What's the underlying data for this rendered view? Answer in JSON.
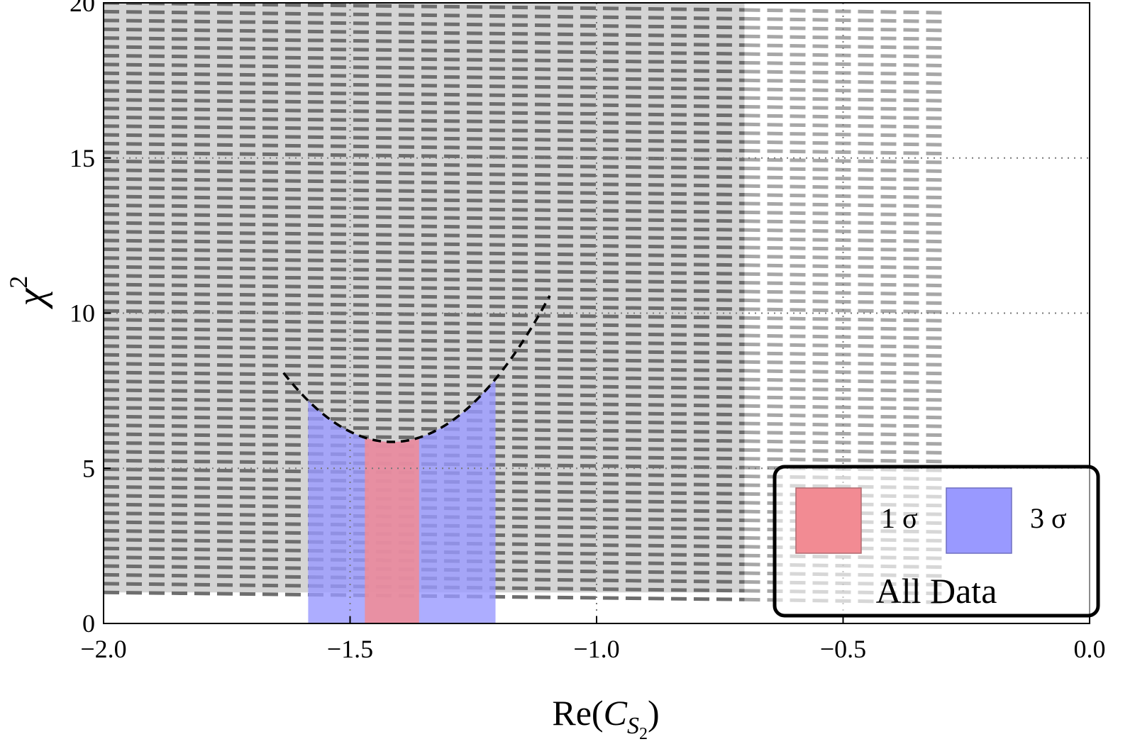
{
  "chart_data": {
    "type": "line",
    "xlabel_main": "Re(",
    "xlabel_var": "C",
    "xlabel_sub": "S",
    "xlabel_subsub": "2",
    "xlabel_close": ")",
    "ylabel_var": "χ",
    "ylabel_sup": "2",
    "xlim": [
      -2.0,
      0.0
    ],
    "ylim": [
      0,
      20
    ],
    "x_ticks": [
      -2.0,
      -1.5,
      -1.0,
      -0.5,
      0.0
    ],
    "x_tick_labels": [
      "−2.0",
      "−1.5",
      "−1.0",
      "−0.5",
      "0.0"
    ],
    "y_ticks": [
      0,
      5,
      10,
      15,
      20
    ],
    "y_tick_labels": [
      "0",
      "5",
      "10",
      "15",
      "20"
    ],
    "grid": true,
    "curve": {
      "style": "dashed",
      "color": "#000000",
      "minimum_x": -1.415,
      "minimum_y": 5.85,
      "curvature": 46.0
    },
    "region_1sigma": {
      "x": [
        -1.47,
        -1.36
      ],
      "color": "#f28b93"
    },
    "region_3sigma": {
      "x": [
        -1.585,
        -1.205
      ],
      "color": "#9999ff"
    },
    "background_band": {
      "x": [
        -2.0,
        -0.7
      ],
      "y": [
        1.0,
        20.0
      ],
      "color": "#d4d4d4"
    },
    "legend": {
      "placement": "bottom-right",
      "entries": [
        {
          "label": "1 σ",
          "color": "#f28b93"
        },
        {
          "label": "3 σ",
          "color": "#9999ff"
        }
      ],
      "title": "All Data"
    }
  }
}
